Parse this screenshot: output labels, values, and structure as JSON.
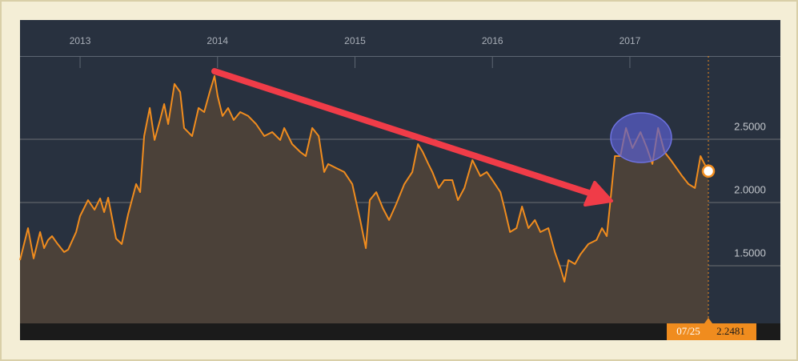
{
  "chart_data": {
    "type": "line",
    "color": "#f08c1e",
    "area_color": "#4b4139",
    "x": [
      2012.563,
      2012.621,
      2012.662,
      2012.709,
      2012.738,
      2012.767,
      2012.796,
      2012.837,
      2012.884,
      2012.913,
      2012.971,
      2013.0,
      2013.058,
      2013.105,
      2013.146,
      2013.175,
      2013.204,
      2013.262,
      2013.303,
      2013.349,
      2013.408,
      2013.437,
      2013.466,
      2013.507,
      2013.542,
      2013.582,
      2013.612,
      2013.641,
      2013.687,
      2013.728,
      2013.757,
      2013.815,
      2013.862,
      2013.903,
      2013.943,
      2013.978,
      2014.001,
      2014.036,
      2014.077,
      2014.118,
      2014.165,
      2014.223,
      2014.281,
      2014.34,
      2014.398,
      2014.456,
      2014.485,
      2014.543,
      2014.602,
      2014.642,
      2014.689,
      2014.736,
      2014.776,
      2014.805,
      2014.864,
      2014.922,
      2014.98,
      2015.038,
      2015.079,
      2015.108,
      2015.155,
      2015.202,
      2015.248,
      2015.3,
      2015.359,
      2015.417,
      2015.458,
      2015.493,
      2015.534,
      2015.563,
      2015.609,
      2015.65,
      2015.708,
      2015.749,
      2015.796,
      2015.854,
      2015.912,
      2015.959,
      2016.0,
      2016.058,
      2016.087,
      2016.128,
      2016.175,
      2016.215,
      2016.262,
      2016.309,
      2016.349,
      2016.407,
      2016.454,
      2016.495,
      2016.524,
      2016.553,
      2016.6,
      2016.64,
      2016.698,
      2016.757,
      2016.797,
      2016.832,
      2016.856,
      2016.891,
      2016.931,
      2016.972,
      2017.019,
      2017.077,
      2017.124,
      2017.164,
      2017.205,
      2017.252,
      2017.298,
      2017.339,
      2017.38,
      2017.426,
      2017.473,
      2017.514,
      2017.543,
      2017.571
    ],
    "values": [
      1.544,
      1.797,
      1.557,
      1.766,
      1.639,
      1.703,
      1.734,
      1.671,
      1.608,
      1.627,
      1.766,
      1.892,
      2.019,
      1.943,
      2.032,
      1.924,
      2.038,
      1.715,
      1.671,
      1.905,
      2.146,
      2.082,
      2.525,
      2.747,
      2.494,
      2.652,
      2.778,
      2.62,
      2.937,
      2.873,
      2.589,
      2.525,
      2.747,
      2.715,
      2.873,
      3.0,
      2.842,
      2.684,
      2.747,
      2.652,
      2.715,
      2.684,
      2.62,
      2.525,
      2.557,
      2.494,
      2.589,
      2.462,
      2.399,
      2.367,
      2.589,
      2.525,
      2.241,
      2.304,
      2.272,
      2.241,
      2.146,
      1.861,
      1.639,
      2.019,
      2.082,
      1.956,
      1.861,
      1.987,
      2.146,
      2.241,
      2.462,
      2.399,
      2.304,
      2.241,
      2.114,
      2.177,
      2.177,
      2.019,
      2.114,
      2.335,
      2.209,
      2.241,
      2.177,
      2.082,
      1.956,
      1.766,
      1.797,
      1.968,
      1.797,
      1.861,
      1.766,
      1.797,
      1.608,
      1.481,
      1.373,
      1.544,
      1.513,
      1.589,
      1.671,
      1.703,
      1.797,
      1.734,
      1.987,
      2.367,
      2.367,
      2.589,
      2.43,
      2.557,
      2.43,
      2.304,
      2.589,
      2.399,
      2.335,
      2.272,
      2.209,
      2.146,
      2.114,
      2.367,
      2.304,
      2.2481
    ],
    "xlim": [
      2012.563,
      2018.095
    ],
    "xticks": [
      2013,
      2014,
      2015,
      2016,
      2017
    ],
    "ylim": [
      1.044,
      3.158
    ],
    "yticks": [
      {
        "value": 1.5,
        "label": "1.5000"
      },
      {
        "value": 2.0,
        "label": "2.0000"
      },
      {
        "value": 2.5,
        "label": "2.5000"
      }
    ],
    "grid": true,
    "current": {
      "date": "07/25",
      "value": 2.2481
    }
  }
}
